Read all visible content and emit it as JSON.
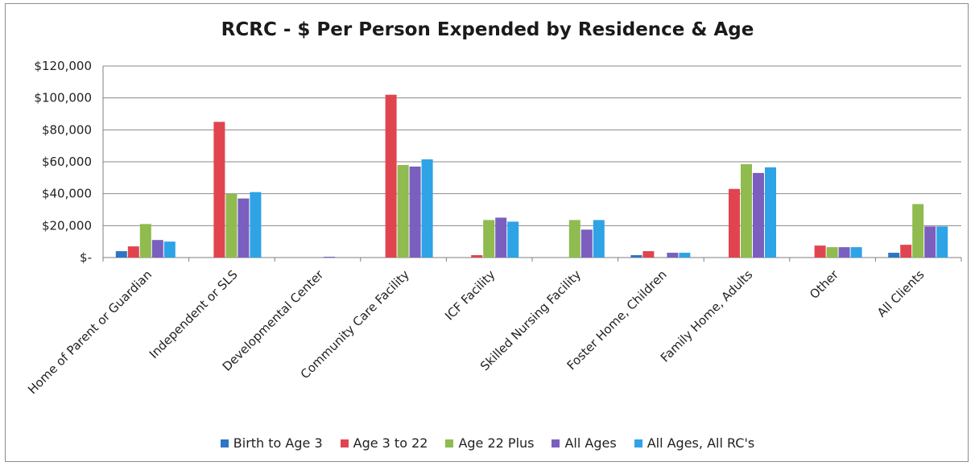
{
  "chart_data": {
    "type": "bar",
    "title": "RCRC - $ Per Person Expended by Residence & Age",
    "categories": [
      "Home of Parent or Guardian",
      "Independent or SLS",
      "Developmental Center",
      "Community Care Facility",
      "ICF Facility",
      "Skilled Nursing Facility",
      "Foster Home, Children",
      "Family Home, Adults",
      "Other",
      "All Clients"
    ],
    "series": [
      {
        "name": "Birth to Age 3",
        "color": "#2e75c6",
        "values": [
          4000,
          0,
          0,
          0,
          0,
          0,
          1500,
          0,
          0,
          3000
        ]
      },
      {
        "name": "Age 3 to 22",
        "color": "#e0454f",
        "values": [
          7000,
          85000,
          0,
          102000,
          1500,
          0,
          4000,
          43000,
          7500,
          8000
        ]
      },
      {
        "name": "Age 22 Plus",
        "color": "#8fbb4f",
        "values": [
          21000,
          40000,
          0,
          58000,
          23500,
          23500,
          0,
          58500,
          6500,
          33500
        ]
      },
      {
        "name": "All Ages",
        "color": "#7a5fbf",
        "values": [
          11000,
          37000,
          500,
          57000,
          25000,
          17500,
          3000,
          53000,
          6500,
          19500
        ]
      },
      {
        "name": "All Ages, All RC's",
        "color": "#2ea3e6",
        "values": [
          10000,
          41000,
          0,
          61500,
          22500,
          23500,
          3000,
          56500,
          6500,
          19500
        ]
      }
    ],
    "yticks": [
      "$-",
      "$20,000",
      "$40,000",
      "$60,000",
      "$80,000",
      "$100,000",
      "$120,000"
    ],
    "ylim": [
      0,
      120000
    ],
    "grid": true,
    "legend_position": "bottom"
  }
}
